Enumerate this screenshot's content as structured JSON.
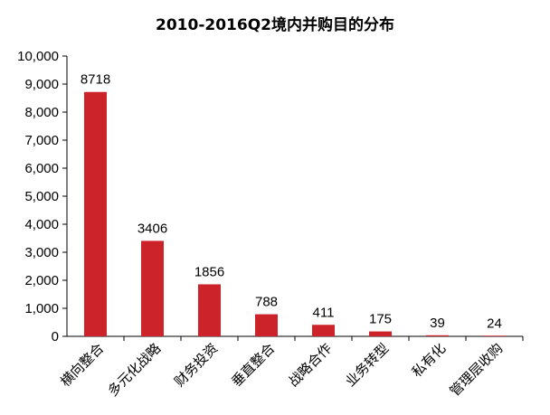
{
  "chart_data": {
    "type": "bar",
    "title": "2010-2016Q2境内并购目的分布",
    "categories": [
      "横向整合",
      "多元化战略",
      "财务投资",
      "垂直整合",
      "战略合作",
      "业务转型",
      "私有化",
      "管理层收购"
    ],
    "values": [
      8718,
      3406,
      1856,
      788,
      411,
      175,
      39,
      24
    ],
    "data_labels": [
      "8718",
      "3406",
      "1856",
      "788",
      "411",
      "175",
      "39",
      "24"
    ],
    "y_ticks": [
      0,
      1000,
      2000,
      3000,
      4000,
      5000,
      6000,
      7000,
      8000,
      9000,
      10000
    ],
    "y_tick_labels": [
      "0",
      "1,000",
      "2,000",
      "3,000",
      "4,000",
      "5,000",
      "6,000",
      "7,000",
      "8,000",
      "9,000",
      "10,000"
    ],
    "ylim": [
      0,
      10000
    ],
    "xlabel": "",
    "ylabel": "",
    "grid": false,
    "legend": "none",
    "colors": {
      "bar": "#cc2229",
      "axis": "#000000"
    }
  }
}
